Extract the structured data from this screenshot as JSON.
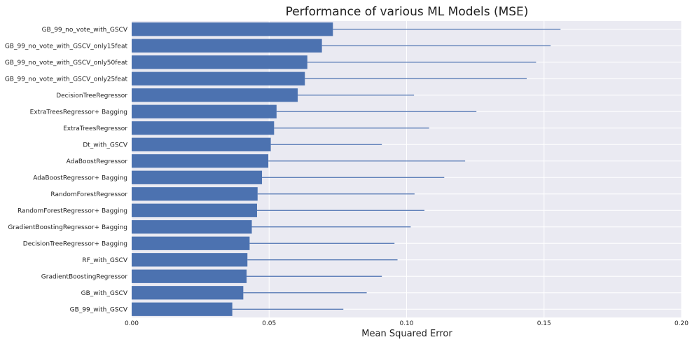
{
  "chart_data": {
    "type": "bar",
    "orientation": "horizontal",
    "title": "Performance of various ML Models (MSE)",
    "xlabel": "Mean Squared Error",
    "ylabel": "",
    "xlim": [
      0,
      0.2
    ],
    "xticks": [
      "0.00",
      "0.05",
      "0.10",
      "0.15",
      "0.20"
    ],
    "grid": true,
    "colors": {
      "bar": "#4c72b0",
      "background": "#eaeaf2",
      "grid": "#ffffff",
      "error": "#4c72b0"
    },
    "categories": [
      "GB_99_no_vote_with_GSCV",
      "GB_99_no_vote_with_GSCV_only15feat",
      "GB_99_no_vote_with_GSCV_only50feat",
      "GB_99_no_vote_with_GSCV_only25feat",
      "DecisionTreeRegressor",
      "ExtraTreesRegressor+ Bagging",
      "ExtraTreesRegressor",
      "Dt_with_GSCV",
      "AdaBoostRegressor",
      "AdaBoostRegressor+ Bagging",
      "RandomForestRegressor",
      "RandomForestRegressor+ Bagging",
      "GradientBoostingRegressor+ Bagging",
      "DecisionTreeRegressor+ Bagging",
      "RF_with_GSCV",
      "GradientBoostingRegressor",
      "GB_with_GSCV",
      "GB_99_with_GSCV"
    ],
    "values": [
      0.0732,
      0.0692,
      0.0639,
      0.063,
      0.0604,
      0.0527,
      0.0518,
      0.0506,
      0.0497,
      0.0474,
      0.0458,
      0.0456,
      0.0437,
      0.0429,
      0.0421,
      0.0418,
      0.0406,
      0.0366
    ],
    "errors": [
      0.0828,
      0.0832,
      0.0832,
      0.0807,
      0.0423,
      0.0727,
      0.0564,
      0.0404,
      0.0716,
      0.0663,
      0.0571,
      0.0609,
      0.0578,
      0.0527,
      0.0546,
      0.0492,
      0.0449,
      0.0404
    ]
  }
}
